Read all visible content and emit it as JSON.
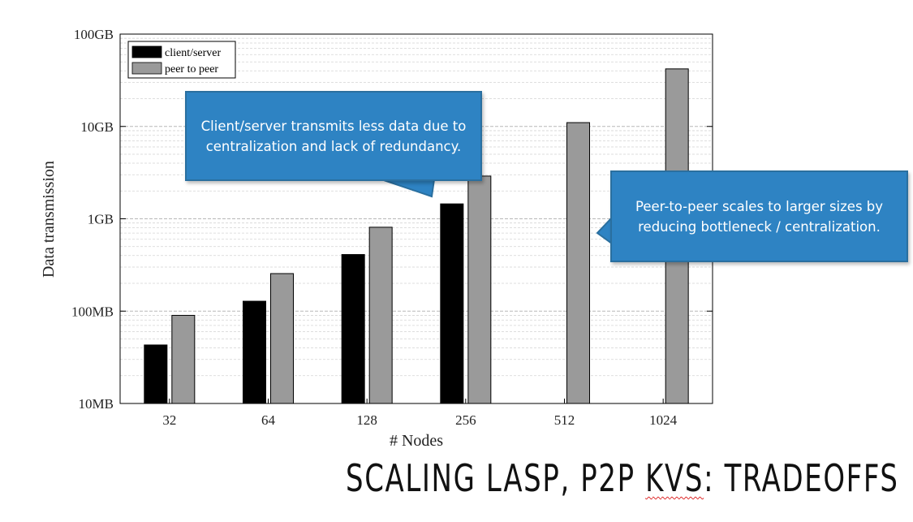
{
  "chart_data": {
    "type": "bar",
    "x": [
      32,
      64,
      128,
      256,
      512,
      1024
    ],
    "categories": [
      "32",
      "64",
      "128",
      "256",
      "512",
      "1024"
    ],
    "xlabel": "# Nodes",
    "ylabel": "Data transmission",
    "yscale": "log",
    "ylim": [
      "10MB",
      "100GB"
    ],
    "y_tick_labels": [
      "10MB",
      "100MB",
      "1GB",
      "10GB",
      "100GB"
    ],
    "units": "MB",
    "grid": true,
    "legend_position": "top-left",
    "series": [
      {
        "name": "client/server",
        "color": "#000000",
        "values": [
          43,
          128,
          410,
          1450,
          null,
          null
        ]
      },
      {
        "name": "peer to peer",
        "color": "#9a9a9a",
        "values": [
          90,
          255,
          810,
          2900,
          11000,
          42000
        ]
      }
    ]
  },
  "callouts": [
    {
      "text": "Client/server transmits less data due to centralization and lack of redundancy."
    },
    {
      "text": "Peer-to-peer scales to larger sizes by reducing bottleneck / centralization."
    }
  ],
  "slide": {
    "title_part1": "SCALING LASP, P2P ",
    "title_part2": "KVS",
    "title_part3": ": TRADEOFFS"
  },
  "colors": {
    "callout_fill": "#2e83c3",
    "callout_border": "#2a6f9f"
  }
}
